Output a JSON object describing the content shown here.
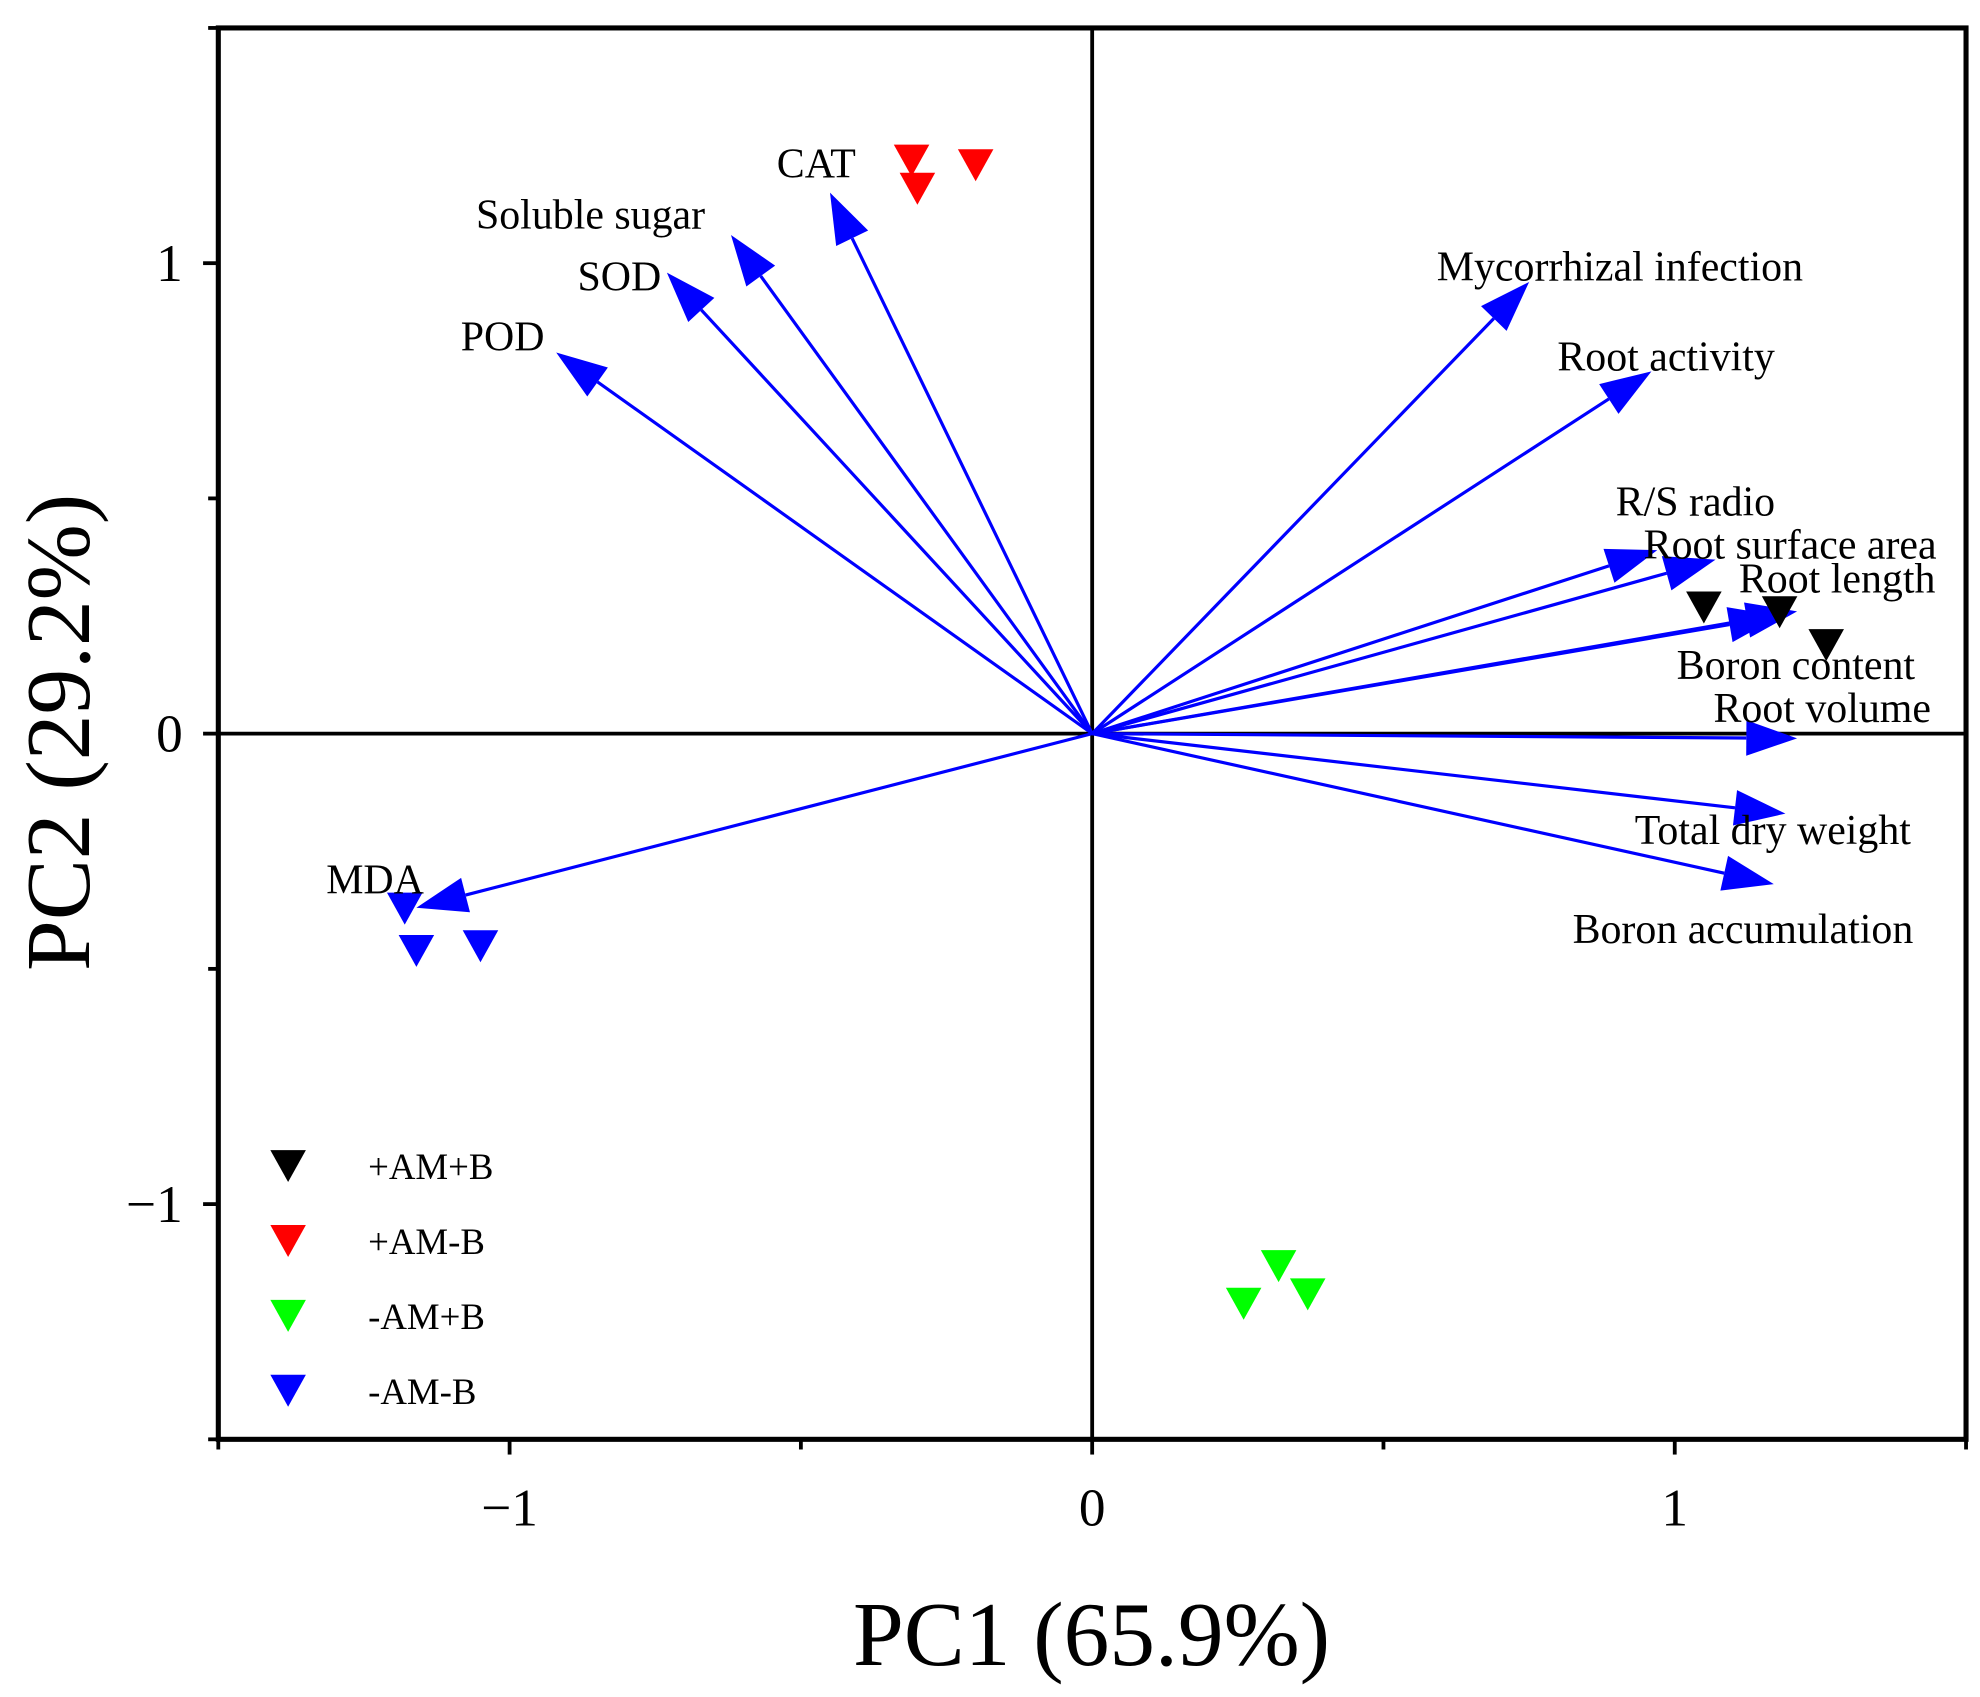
{
  "chart_data": {
    "type": "scatter",
    "subtype": "pca-biplot",
    "xlabel": "PC1 (65.9%)",
    "ylabel": "PC2 (29.2%)",
    "xlim": [
      -1.5,
      1.5
    ],
    "ylim": [
      -1.5,
      1.5
    ],
    "xticks": [
      -1,
      0,
      1
    ],
    "yticks": [
      -1,
      0,
      1
    ],
    "xtick_labels": [
      "−1",
      "0",
      "1"
    ],
    "ytick_labels": [
      "−1",
      "0",
      "1"
    ],
    "grid": false,
    "legend_position": "bottom-left",
    "arrow_color": "#0000ff",
    "loadings": [
      {
        "name": "CAT",
        "x": -0.45,
        "y": 1.15
      },
      {
        "name": "Soluble sugar",
        "x": -0.62,
        "y": 1.06
      },
      {
        "name": "SOD",
        "x": -0.73,
        "y": 0.98
      },
      {
        "name": "POD",
        "x": -0.92,
        "y": 0.81
      },
      {
        "name": "Mycorrhizal infection",
        "x": 0.75,
        "y": 0.96
      },
      {
        "name": "Root activity",
        "x": 0.96,
        "y": 0.77
      },
      {
        "name": "R/S radio",
        "x": 0.97,
        "y": 0.39
      },
      {
        "name": "Root surface area",
        "x": 1.07,
        "y": 0.37
      },
      {
        "name": "Root length",
        "x": 1.21,
        "y": 0.26
      },
      {
        "name": "Boron content",
        "x": 1.18,
        "y": 0.25
      },
      {
        "name": "Root volume",
        "x": 1.21,
        "y": -0.01
      },
      {
        "name": "Total dry weight",
        "x": 1.19,
        "y": -0.17
      },
      {
        "name": "Boron accumulation",
        "x": 1.17,
        "y": -0.32
      },
      {
        "name": "MDA",
        "x": -1.16,
        "y": -0.37
      }
    ],
    "series": [
      {
        "name": "+AM+B",
        "color": "#000000",
        "points": [
          [
            1.05,
            0.27
          ],
          [
            1.18,
            0.26
          ],
          [
            1.26,
            0.19
          ]
        ]
      },
      {
        "name": "+AM-B",
        "color": "#ff0000",
        "points": [
          [
            -0.31,
            1.22
          ],
          [
            -0.3,
            1.16
          ],
          [
            -0.2,
            1.21
          ]
        ]
      },
      {
        "name": "-AM+B",
        "color": "#00ff00",
        "points": [
          [
            0.32,
            -1.13
          ],
          [
            0.26,
            -1.21
          ],
          [
            0.37,
            -1.19
          ]
        ]
      },
      {
        "name": "-AM-B",
        "color": "#0000ff",
        "points": [
          [
            -1.18,
            -0.37
          ],
          [
            -1.16,
            -0.46
          ],
          [
            -1.05,
            -0.45
          ]
        ]
      }
    ]
  }
}
